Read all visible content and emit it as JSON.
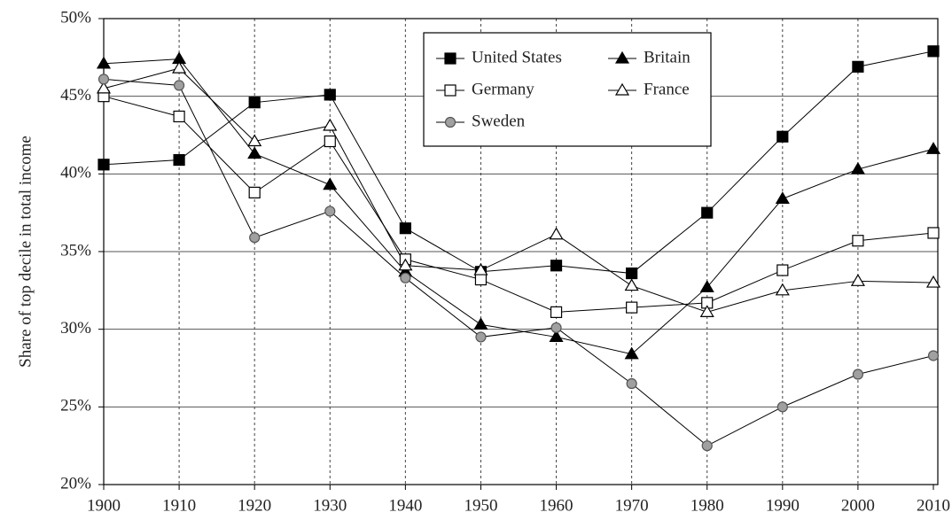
{
  "chart_data": {
    "type": "line",
    "y_label": "Share of top decile in total income",
    "x": [
      1900,
      1910,
      1920,
      1930,
      1940,
      1950,
      1960,
      1970,
      1980,
      1990,
      2000,
      2010
    ],
    "series": [
      {
        "name": "United States",
        "color": "#000000",
        "marker": "square",
        "fill": "#000000",
        "values": [
          40.6,
          40.9,
          44.6,
          45.1,
          36.5,
          33.7,
          34.1,
          33.6,
          37.5,
          42.4,
          46.9,
          47.9
        ]
      },
      {
        "name": "Britain",
        "color": "#000000",
        "marker": "triangle",
        "fill": "#000000",
        "values": [
          47.1,
          47.4,
          41.3,
          39.3,
          33.7,
          30.3,
          29.5,
          28.4,
          32.7,
          38.4,
          40.3,
          41.6
        ]
      },
      {
        "name": "Germany",
        "color": "#000000",
        "marker": "square",
        "fill": "#ffffff",
        "values": [
          45.0,
          43.7,
          38.8,
          42.1,
          34.5,
          33.2,
          31.1,
          31.4,
          31.7,
          33.8,
          35.7,
          36.2
        ]
      },
      {
        "name": "France",
        "color": "#000000",
        "marker": "triangle",
        "fill": "#ffffff",
        "values": [
          45.5,
          46.8,
          42.1,
          43.1,
          34.1,
          33.8,
          36.1,
          32.8,
          31.1,
          32.5,
          33.1,
          33.0
        ]
      },
      {
        "name": "Sweden",
        "color": "#555555",
        "marker": "circle",
        "fill": "#a0a0a0",
        "values": [
          46.1,
          45.7,
          35.9,
          37.6,
          33.3,
          29.5,
          30.1,
          26.5,
          22.5,
          25.0,
          27.1,
          28.3
        ]
      }
    ],
    "xlim": [
      1900,
      2010
    ],
    "xticks": [
      1900,
      1910,
      1920,
      1930,
      1940,
      1950,
      1960,
      1970,
      1980,
      1990,
      2000,
      2010
    ],
    "ylim": [
      20,
      50
    ],
    "yticks": [
      {
        "value": 20,
        "label": "20%"
      },
      {
        "value": 25,
        "label": "25%"
      },
      {
        "value": 30,
        "label": "30%"
      },
      {
        "value": 35,
        "label": "35%"
      },
      {
        "value": 40,
        "label": "40%"
      },
      {
        "value": 45,
        "label": "45%"
      },
      {
        "value": 50,
        "label": "50%"
      }
    ],
    "grid": true,
    "legend": "top"
  }
}
